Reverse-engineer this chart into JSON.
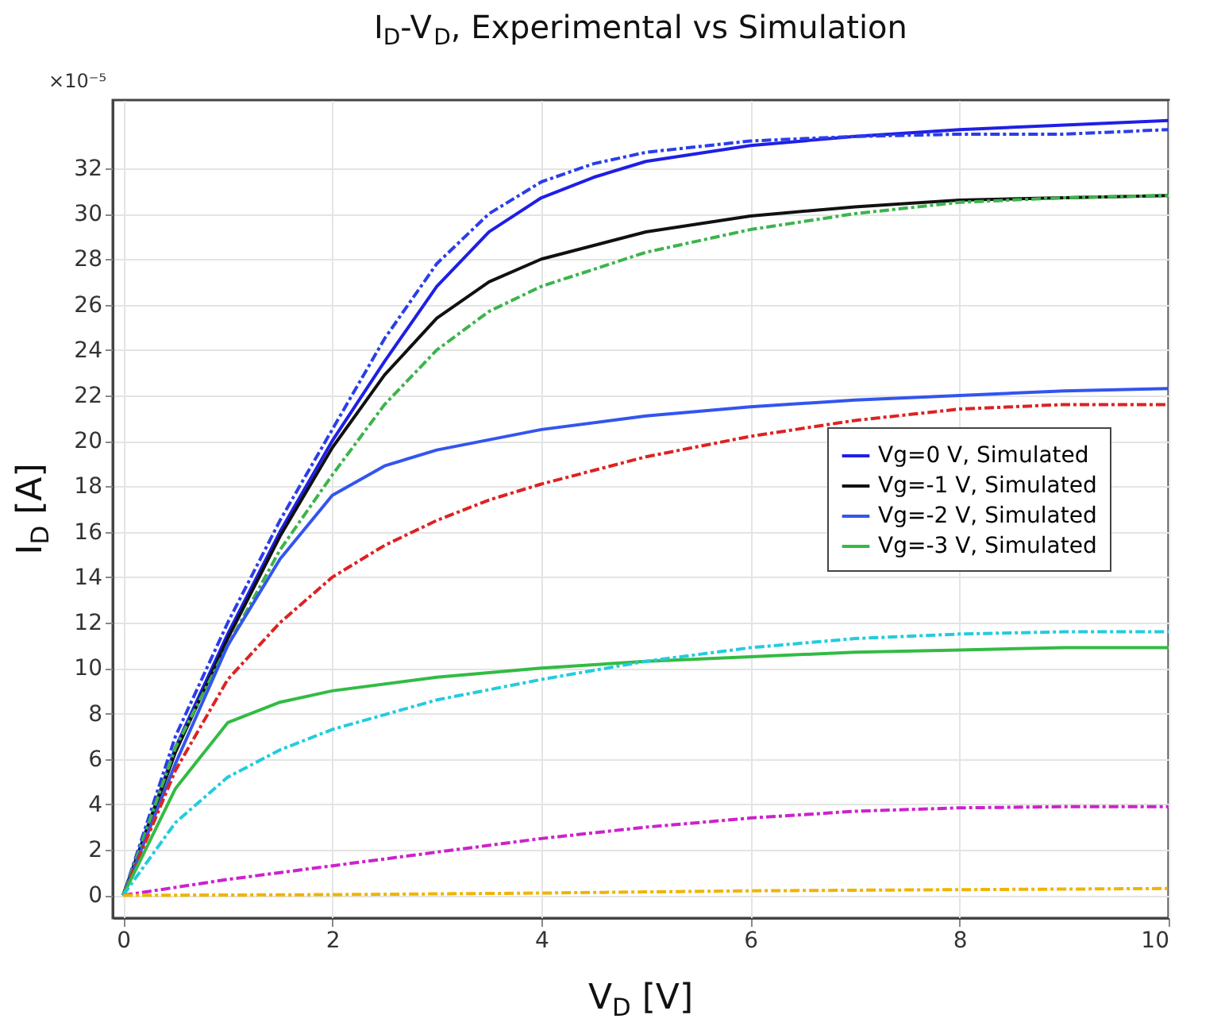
{
  "chart_data": {
    "type": "line",
    "title": "I$_{D}$-V$_{D}$, Experimental vs Simulation",
    "xlabel": "V$_{D}$ [V]",
    "ylabel": "I$_{D}$ [A]",
    "annotations": [
      "×10⁻⁵"
    ],
    "xlim": [
      -0.1,
      10
    ],
    "xticks": [
      0,
      2,
      4,
      6,
      8,
      10
    ],
    "ylim": [
      -1,
      35
    ],
    "yticks": [
      0,
      2,
      4,
      6,
      8,
      10,
      12,
      14,
      16,
      18,
      20,
      22,
      24,
      26,
      28,
      30,
      32
    ],
    "grid": true,
    "legend": "right",
    "marker": "none",
    "series": [
      {
        "name": "Vg=0 V, Simulated",
        "color": "#1f1fe6",
        "line_style": "solid",
        "x": [
          0,
          0.5,
          1,
          1.5,
          2,
          2.5,
          3,
          3.5,
          4,
          4.5,
          5,
          6,
          7,
          8,
          9,
          10
        ],
        "values": [
          0,
          6.5,
          11.5,
          16,
          20,
          23.5,
          26.8,
          29.2,
          30.7,
          31.6,
          32.3,
          33,
          33.4,
          33.7,
          33.9,
          34.1
        ]
      },
      {
        "color": "#2a3ee8",
        "line_style": "dashed",
        "x": [
          0,
          0.5,
          1,
          1.5,
          2,
          2.5,
          3,
          3.5,
          4,
          4.5,
          5,
          6,
          7,
          8,
          9,
          10
        ],
        "values": [
          0,
          7,
          12,
          16.5,
          20.5,
          24.5,
          27.8,
          30,
          31.4,
          32.2,
          32.7,
          33.2,
          33.4,
          33.5,
          33.5,
          33.7
        ]
      },
      {
        "name": "Vg=-1 V, Simulated",
        "color": "#111111",
        "line_style": "solid",
        "x": [
          0,
          0.5,
          1,
          1.5,
          2,
          2.5,
          3,
          3.5,
          4,
          5,
          6,
          7,
          8,
          9,
          10
        ],
        "values": [
          0,
          6.3,
          11.3,
          15.8,
          19.7,
          22.9,
          25.4,
          27,
          28,
          29.2,
          29.9,
          30.3,
          30.6,
          30.7,
          30.8
        ]
      },
      {
        "color": "#3cb44b",
        "line_style": "dashed",
        "x": [
          0,
          0.5,
          1,
          1.5,
          2,
          2.5,
          3,
          3.5,
          4,
          5,
          6,
          7,
          8,
          9,
          10
        ],
        "values": [
          0,
          6.5,
          11,
          15.2,
          18.5,
          21.6,
          24,
          25.7,
          26.8,
          28.3,
          29.3,
          30,
          30.5,
          30.7,
          30.8
        ]
      },
      {
        "name": "Vg=-2 V, Simulated",
        "color": "#3355ee",
        "line_style": "solid",
        "x": [
          0,
          0.5,
          1,
          1.5,
          2,
          2.5,
          3,
          4,
          5,
          6,
          7,
          8,
          9,
          10
        ],
        "values": [
          0,
          5.8,
          11,
          14.8,
          17.6,
          18.9,
          19.6,
          20.5,
          21.1,
          21.5,
          21.8,
          22,
          22.2,
          22.3
        ]
      },
      {
        "color": "#dd2222",
        "line_style": "dashed",
        "x": [
          0,
          0.5,
          1,
          1.5,
          2,
          2.5,
          3,
          3.5,
          4,
          5,
          6,
          7,
          8,
          9,
          10
        ],
        "values": [
          0,
          5.5,
          9.5,
          12,
          14,
          15.4,
          16.5,
          17.4,
          18.1,
          19.3,
          20.2,
          20.9,
          21.4,
          21.6,
          21.6
        ]
      },
      {
        "name": "Vg=-3 V, Simulated",
        "color": "#33bb44",
        "line_style": "solid",
        "x": [
          0,
          0.5,
          1,
          1.5,
          2,
          3,
          4,
          5,
          6,
          7,
          8,
          9,
          10
        ],
        "values": [
          0,
          4.7,
          7.6,
          8.5,
          9,
          9.6,
          10,
          10.3,
          10.5,
          10.7,
          10.8,
          10.9,
          10.9
        ]
      },
      {
        "color": "#22ccdd",
        "line_style": "dashed",
        "x": [
          0,
          0.5,
          1,
          1.5,
          2,
          3,
          4,
          5,
          6,
          7,
          8,
          9,
          10
        ],
        "values": [
          0,
          3.2,
          5.2,
          6.4,
          7.3,
          8.6,
          9.5,
          10.3,
          10.9,
          11.3,
          11.5,
          11.6,
          11.6
        ]
      },
      {
        "color": "#cc22cc",
        "line_style": "dashed",
        "x": [
          0,
          1,
          2,
          3,
          4,
          5,
          6,
          7,
          8,
          9,
          10
        ],
        "values": [
          0,
          0.7,
          1.3,
          1.9,
          2.5,
          3,
          3.4,
          3.7,
          3.85,
          3.9,
          3.9
        ]
      },
      {
        "color": "#f0b400",
        "line_style": "dashed",
        "x": [
          0,
          2,
          4,
          6,
          8,
          10
        ],
        "values": [
          0,
          0.03,
          0.1,
          0.2,
          0.25,
          0.3
        ]
      }
    ]
  }
}
